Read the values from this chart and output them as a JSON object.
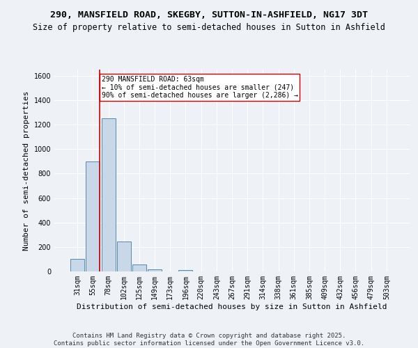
{
  "title": "290, MANSFIELD ROAD, SKEGBY, SUTTON-IN-ASHFIELD, NG17 3DT",
  "subtitle": "Size of property relative to semi-detached houses in Sutton in Ashfield",
  "xlabel": "Distribution of semi-detached houses by size in Sutton in Ashfield",
  "ylabel": "Number of semi-detached properties",
  "bar_labels": [
    "31sqm",
    "55sqm",
    "78sqm",
    "102sqm",
    "125sqm",
    "149sqm",
    "173sqm",
    "196sqm",
    "220sqm",
    "243sqm",
    "267sqm",
    "291sqm",
    "314sqm",
    "338sqm",
    "361sqm",
    "385sqm",
    "409sqm",
    "432sqm",
    "456sqm",
    "479sqm",
    "503sqm"
  ],
  "bar_values": [
    100,
    900,
    1250,
    245,
    55,
    15,
    0,
    10,
    0,
    0,
    0,
    0,
    0,
    0,
    0,
    0,
    0,
    0,
    0,
    0,
    0
  ],
  "bar_color": "#c8d8e8",
  "bar_edge_color": "#5588aa",
  "background_color": "#eef2f7",
  "grid_color": "#ffffff",
  "vline_color": "#cc0000",
  "vline_x": 1.45,
  "annotation_text": "290 MANSFIELD ROAD: 63sqm\n← 10% of semi-detached houses are smaller (247)\n90% of semi-detached houses are larger (2,286) →",
  "annotation_box_color": "#ffffff",
  "annotation_box_edge": "#cc0000",
  "ylim": [
    0,
    1650
  ],
  "yticks": [
    0,
    200,
    400,
    600,
    800,
    1000,
    1200,
    1400,
    1600
  ],
  "footer_text": "Contains HM Land Registry data © Crown copyright and database right 2025.\nContains public sector information licensed under the Open Government Licence v3.0.",
  "title_fontsize": 9.5,
  "subtitle_fontsize": 8.5,
  "xlabel_fontsize": 8,
  "ylabel_fontsize": 8,
  "tick_fontsize": 7,
  "annotation_fontsize": 7,
  "footer_fontsize": 6.5
}
